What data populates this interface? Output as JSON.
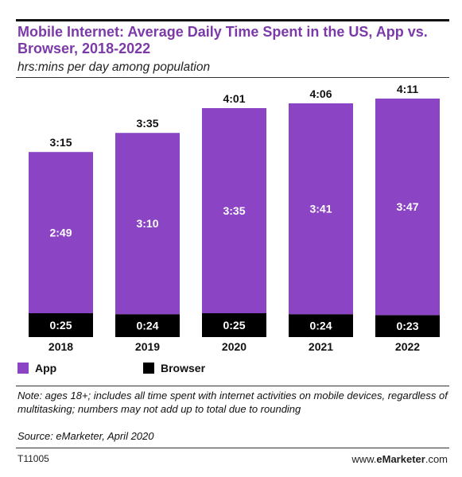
{
  "header": {
    "title": "Mobile Internet: Average Daily Time Spent in the US, App vs. Browser, 2018-2022",
    "subtitle": "hrs:mins per day among population"
  },
  "footer": {
    "note": "Note: ages 18+; includes all time spent with internet activities on mobile devices, regardless of multitasking; numbers may not add up to total due to rounding",
    "source": "Source: eMarketer, April 2020",
    "code": "T11005",
    "site_prefix": "www.",
    "site_brand": "eMarketer",
    "site_suffix": ".com"
  },
  "colors": {
    "app": "#8b45c4",
    "browser": "#000000",
    "title": "#7c3aa8"
  },
  "chart_data": {
    "type": "bar",
    "stacked": true,
    "categories": [
      "2018",
      "2019",
      "2020",
      "2021",
      "2022"
    ],
    "series": [
      {
        "name": "Browser",
        "values": [
          25,
          24,
          25,
          24,
          23
        ],
        "labels": [
          "0:25",
          "0:24",
          "0:25",
          "0:24",
          "0:23"
        ]
      },
      {
        "name": "App",
        "values": [
          169,
          190,
          215,
          221,
          227
        ],
        "labels": [
          "2:49",
          "3:10",
          "3:35",
          "3:41",
          "3:47"
        ]
      }
    ],
    "totals": [
      195,
      215,
      241,
      246,
      251
    ],
    "total_labels": [
      "3:15",
      "3:35",
      "4:01",
      "4:06",
      "4:11"
    ],
    "ylim": [
      0,
      260
    ],
    "legend": {
      "position": "bottom-left",
      "items": [
        "App",
        "Browser"
      ]
    }
  }
}
